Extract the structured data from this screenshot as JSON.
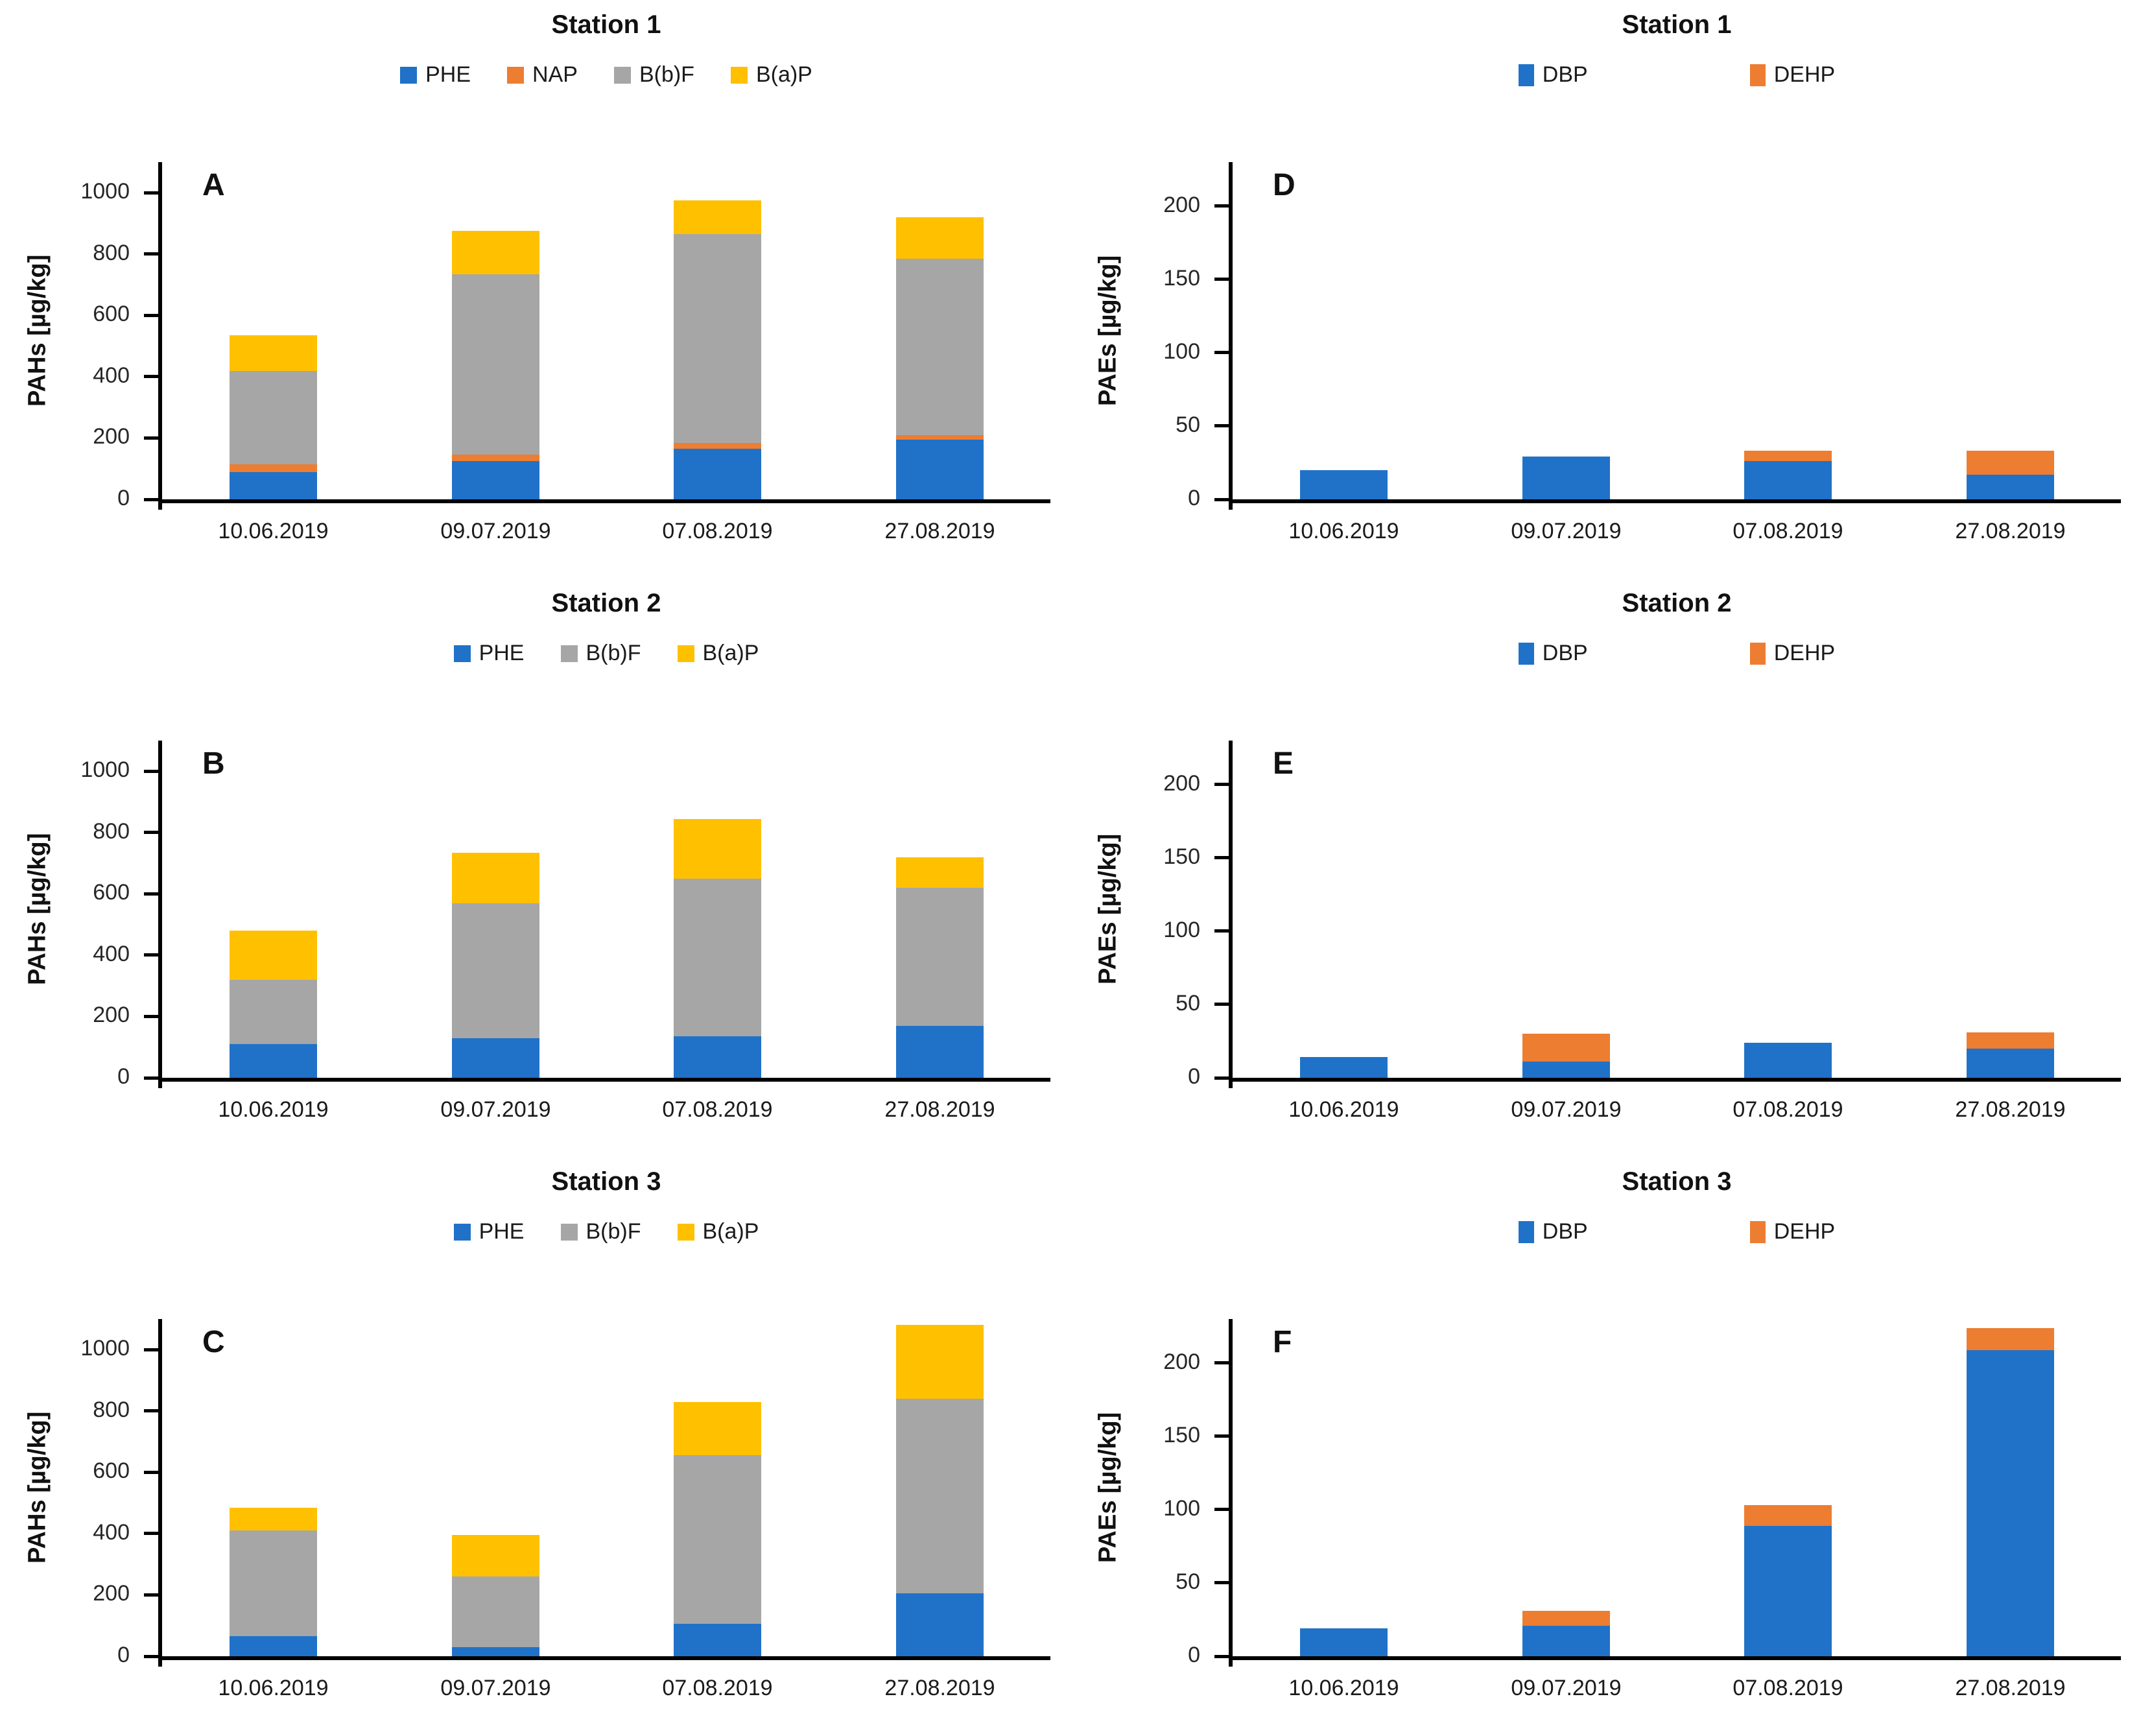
{
  "figure": {
    "background": "#ffffff",
    "type": "multi-panel stacked bar figure",
    "rows": 3,
    "cols": 2
  },
  "colors": {
    "axis": "#000000",
    "text": "#1a1a1a",
    "blue": "#2072C8",
    "orange": "#ED7D31",
    "gray": "#A6A6A6",
    "yellow": "#FFC000"
  },
  "chart_data": [
    {
      "type": "bar",
      "stacked": true,
      "panel": "A",
      "title": "Station 1",
      "ylabel": "PAHs [µg/kg]",
      "xlabel": "",
      "categories": [
        "10.06.2019",
        "09.07.2019",
        "07.08.2019",
        "27.08.2019"
      ],
      "yticks": [
        0,
        200,
        400,
        600,
        800,
        1000
      ],
      "ylim": [
        0,
        1100
      ],
      "legend_position": "top",
      "legend_gap": "normal",
      "grid": "off",
      "series": [
        {
          "name": "PHE",
          "color": "#2072C8",
          "values": [
            90,
            125,
            165,
            195
          ]
        },
        {
          "name": "NAP",
          "color": "#ED7D31",
          "values": [
            25,
            20,
            20,
            15
          ]
        },
        {
          "name": "B(b)F",
          "color": "#A6A6A6",
          "values": [
            305,
            590,
            680,
            575
          ]
        },
        {
          "name": "B(a)P",
          "color": "#FFC000",
          "values": [
            115,
            140,
            110,
            135
          ]
        }
      ]
    },
    {
      "type": "bar",
      "stacked": true,
      "panel": "D",
      "title": "Station 1",
      "ylabel": "PAEs [µg/kg]",
      "xlabel": "",
      "categories": [
        "10.06.2019",
        "09.07.2019",
        "07.08.2019",
        "27.08.2019"
      ],
      "yticks": [
        0,
        50,
        100,
        150,
        200
      ],
      "ylim": [
        0,
        230
      ],
      "legend_position": "top",
      "legend_gap": "wide",
      "grid": "off",
      "series": [
        {
          "name": "DBP",
          "color": "#2072C8",
          "values": [
            20,
            29,
            26,
            17
          ]
        },
        {
          "name": "DEHP",
          "color": "#ED7D31",
          "values": [
            0,
            0,
            7,
            16
          ]
        }
      ]
    },
    {
      "type": "bar",
      "stacked": true,
      "panel": "B",
      "title": "Station 2",
      "ylabel": "PAHs [µg/kg]",
      "xlabel": "",
      "categories": [
        "10.06.2019",
        "09.07.2019",
        "07.08.2019",
        "27.08.2019"
      ],
      "yticks": [
        0,
        200,
        400,
        600,
        800,
        1000
      ],
      "ylim": [
        0,
        1100
      ],
      "legend_position": "top",
      "legend_gap": "normal",
      "grid": "off",
      "series": [
        {
          "name": "PHE",
          "color": "#2072C8",
          "values": [
            110,
            130,
            135,
            170
          ]
        },
        {
          "name": "B(b)F",
          "color": "#A6A6A6",
          "values": [
            210,
            440,
            515,
            450
          ]
        },
        {
          "name": "B(a)P",
          "color": "#FFC000",
          "values": [
            160,
            165,
            195,
            100
          ]
        }
      ]
    },
    {
      "type": "bar",
      "stacked": true,
      "panel": "E",
      "title": "Station 2",
      "ylabel": "PAEs [µg/kg]",
      "xlabel": "",
      "categories": [
        "10.06.2019",
        "09.07.2019",
        "07.08.2019",
        "27.08.2019"
      ],
      "yticks": [
        0,
        50,
        100,
        150,
        200
      ],
      "ylim": [
        0,
        230
      ],
      "legend_position": "top",
      "legend_gap": "wide",
      "grid": "off",
      "series": [
        {
          "name": "DBP",
          "color": "#2072C8",
          "values": [
            14,
            11,
            24,
            20
          ]
        },
        {
          "name": "DEHP",
          "color": "#ED7D31",
          "values": [
            0,
            19,
            0,
            11
          ]
        }
      ]
    },
    {
      "type": "bar",
      "stacked": true,
      "panel": "C",
      "title": "Station 3",
      "ylabel": "PAHs [µg/kg]",
      "xlabel": "",
      "categories": [
        "10.06.2019",
        "09.07.2019",
        "07.08.2019",
        "27.08.2019"
      ],
      "yticks": [
        0,
        200,
        400,
        600,
        800,
        1000
      ],
      "ylim": [
        0,
        1100
      ],
      "legend_position": "top",
      "legend_gap": "normal",
      "grid": "off",
      "series": [
        {
          "name": "PHE",
          "color": "#2072C8",
          "values": [
            65,
            30,
            105,
            205
          ]
        },
        {
          "name": "B(b)F",
          "color": "#A6A6A6",
          "values": [
            345,
            230,
            550,
            635
          ]
        },
        {
          "name": "B(a)P",
          "color": "#FFC000",
          "values": [
            75,
            135,
            175,
            240
          ]
        }
      ]
    },
    {
      "type": "bar",
      "stacked": true,
      "panel": "F",
      "title": "Station 3",
      "ylabel": "PAEs [µg/kg]",
      "xlabel": "",
      "categories": [
        "10.06.2019",
        "09.07.2019",
        "07.08.2019",
        "27.08.2019"
      ],
      "yticks": [
        0,
        50,
        100,
        150,
        200
      ],
      "ylim": [
        0,
        230
      ],
      "legend_position": "top",
      "legend_gap": "wide",
      "grid": "off",
      "series": [
        {
          "name": "DBP",
          "color": "#2072C8",
          "values": [
            19,
            21,
            89,
            209
          ]
        },
        {
          "name": "DEHP",
          "color": "#ED7D31",
          "values": [
            0,
            10,
            14,
            15
          ]
        }
      ]
    }
  ]
}
